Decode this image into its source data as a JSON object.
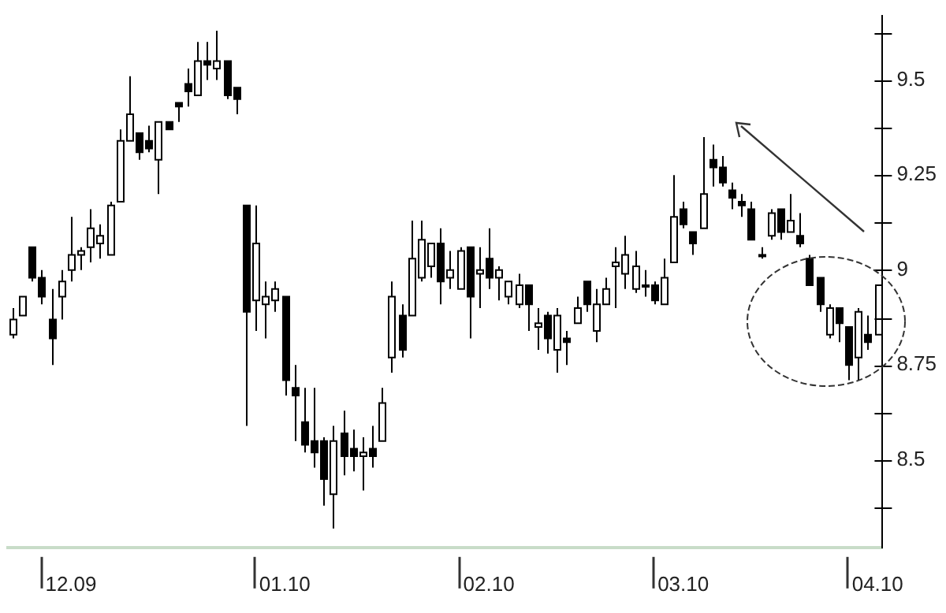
{
  "chart_data": {
    "type": "candlestick",
    "categories": [
      null,
      null,
      null,
      null,
      null,
      null,
      "12.09",
      null,
      null,
      null,
      null,
      null,
      null,
      null,
      null,
      null,
      null,
      null,
      null,
      null,
      null,
      null,
      null,
      null,
      null,
      null,
      null,
      null,
      "01.10",
      null,
      null,
      null,
      null,
      null,
      null,
      null,
      null,
      null,
      null,
      null,
      null,
      null,
      null,
      null,
      null,
      null,
      null,
      null,
      null,
      "02.10",
      null,
      null,
      null,
      null,
      null,
      null,
      null,
      null,
      null,
      null,
      null,
      null,
      null,
      null,
      null,
      null,
      null,
      null,
      null,
      "03.10",
      null,
      null,
      null,
      null,
      null,
      null,
      null,
      null,
      null,
      null,
      null,
      null,
      null,
      null,
      null,
      null,
      null,
      null,
      null,
      "04.10"
    ],
    "ohlc": [
      [
        8.83,
        8.9,
        8.82,
        8.87
      ],
      [
        8.88,
        8.93,
        8.88,
        8.93
      ],
      [
        9.06,
        9.06,
        8.97,
        8.98
      ],
      [
        8.98,
        9.0,
        8.91,
        8.93
      ],
      [
        8.87,
        8.95,
        8.75,
        8.82
      ],
      [
        8.93,
        9.0,
        8.87,
        8.97
      ],
      [
        9.0,
        9.14,
        8.97,
        9.04
      ],
      [
        9.04,
        9.06,
        9.0,
        9.05
      ],
      [
        9.06,
        9.16,
        9.02,
        9.11
      ],
      [
        9.07,
        9.12,
        9.03,
        9.09
      ],
      [
        9.04,
        9.18,
        9.04,
        9.17
      ],
      [
        9.18,
        9.37,
        9.18,
        9.34
      ],
      [
        9.34,
        9.51,
        9.34,
        9.41
      ],
      [
        9.36,
        9.36,
        9.29,
        9.31
      ],
      [
        9.34,
        9.38,
        9.31,
        9.32
      ],
      [
        9.29,
        9.39,
        9.2,
        9.39
      ],
      [
        9.39,
        9.39,
        9.37,
        9.37
      ],
      [
        9.44,
        9.44,
        9.39,
        9.43
      ],
      [
        9.49,
        9.53,
        9.43,
        9.47
      ],
      [
        9.46,
        9.6,
        9.46,
        9.55
      ],
      [
        9.55,
        9.6,
        9.5,
        9.54
      ],
      [
        9.53,
        9.63,
        9.5,
        9.55
      ],
      [
        9.55,
        9.55,
        9.45,
        9.46
      ],
      [
        9.48,
        9.48,
        9.41,
        9.45
      ],
      [
        9.17,
        9.17,
        8.59,
        8.89
      ],
      [
        8.92,
        9.17,
        8.84,
        9.07
      ],
      [
        8.91,
        8.97,
        8.82,
        8.93
      ],
      [
        8.92,
        8.97,
        8.89,
        8.95
      ],
      [
        8.93,
        8.93,
        8.67,
        8.71
      ],
      [
        8.69,
        8.75,
        8.55,
        8.67
      ],
      [
        8.6,
        8.69,
        8.52,
        8.54
      ],
      [
        8.55,
        8.69,
        8.48,
        8.52
      ],
      [
        8.55,
        8.56,
        8.38,
        8.45
      ],
      [
        8.41,
        8.59,
        8.32,
        8.55
      ],
      [
        8.57,
        8.63,
        8.46,
        8.51
      ],
      [
        8.53,
        8.58,
        8.47,
        8.51
      ],
      [
        8.51,
        8.56,
        8.42,
        8.52
      ],
      [
        8.53,
        8.59,
        8.48,
        8.51
      ],
      [
        8.55,
        8.69,
        8.55,
        8.65
      ],
      [
        8.77,
        8.97,
        8.73,
        8.93
      ],
      [
        8.88,
        8.91,
        8.77,
        8.79
      ],
      [
        8.88,
        9.13,
        8.88,
        9.03
      ],
      [
        8.98,
        9.13,
        8.97,
        9.08
      ],
      [
        9.01,
        9.07,
        8.98,
        9.07
      ],
      [
        9.07,
        9.11,
        8.91,
        8.97
      ],
      [
        8.98,
        9.05,
        8.95,
        9.0
      ],
      [
        8.95,
        9.06,
        8.95,
        9.05
      ],
      [
        9.06,
        9.06,
        8.82,
        8.93
      ],
      [
        8.99,
        9.06,
        8.9,
        9.0
      ],
      [
        9.03,
        9.11,
        8.95,
        8.98
      ],
      [
        8.98,
        9.01,
        8.92,
        9.0
      ],
      [
        8.93,
        8.97,
        8.91,
        8.97
      ],
      [
        8.91,
        8.99,
        8.9,
        8.96
      ],
      [
        8.96,
        8.96,
        8.84,
        8.91
      ],
      [
        8.85,
        8.9,
        8.79,
        8.86
      ],
      [
        8.88,
        8.89,
        8.78,
        8.82
      ],
      [
        8.79,
        8.9,
        8.73,
        8.88
      ],
      [
        8.82,
        8.84,
        8.75,
        8.81
      ],
      [
        8.86,
        8.93,
        8.86,
        8.9
      ],
      [
        8.97,
        8.97,
        8.89,
        8.91
      ],
      [
        8.84,
        8.95,
        8.81,
        8.91
      ],
      [
        8.91,
        8.98,
        8.91,
        8.95
      ],
      [
        9.01,
        9.06,
        8.9,
        9.02
      ],
      [
        8.99,
        9.09,
        8.95,
        9.04
      ],
      [
        8.95,
        9.05,
        8.94,
        9.01
      ],
      [
        8.96,
        9.0,
        8.93,
        8.96
      ],
      [
        8.96,
        8.97,
        8.91,
        8.92
      ],
      [
        8.91,
        9.03,
        8.91,
        8.98
      ],
      [
        9.02,
        9.25,
        9.02,
        9.14
      ],
      [
        9.16,
        9.18,
        9.11,
        9.12
      ],
      [
        9.1,
        9.1,
        9.04,
        9.07
      ],
      [
        9.11,
        9.35,
        9.11,
        9.2
      ],
      [
        9.29,
        9.33,
        9.22,
        9.27
      ],
      [
        9.27,
        9.3,
        9.22,
        9.23
      ],
      [
        9.21,
        9.23,
        9.16,
        9.19
      ],
      [
        9.18,
        9.2,
        9.14,
        9.17
      ],
      [
        9.16,
        9.18,
        9.08,
        9.08
      ],
      [
        9.04,
        9.06,
        9.03,
        9.04
      ],
      [
        9.09,
        9.16,
        9.08,
        9.15
      ],
      [
        9.16,
        9.16,
        9.08,
        9.1
      ],
      [
        9.1,
        9.2,
        9.1,
        9.13
      ],
      [
        9.09,
        9.15,
        9.06,
        9.07
      ],
      [
        9.03,
        9.04,
        8.96,
        8.96
      ],
      [
        8.98,
        8.98,
        8.89,
        8.91
      ],
      [
        8.83,
        8.91,
        8.82,
        8.9
      ],
      [
        8.9,
        8.9,
        8.81,
        8.86
      ],
      [
        8.85,
        8.85,
        8.71,
        8.75
      ],
      [
        8.77,
        8.9,
        8.71,
        8.89
      ],
      [
        8.83,
        8.88,
        8.79,
        8.81
      ],
      [
        8.83,
        8.96,
        8.83,
        8.96
      ]
    ],
    "ylim": [
      8.27,
      9.67
    ],
    "yticks": [
      {
        "value": 8.375,
        "label": null
      },
      8.5,
      {
        "value": 8.625,
        "label": null
      },
      8.75,
      {
        "value": 8.875,
        "label": null
      },
      9,
      {
        "value": 9.125,
        "label": null
      },
      9.25,
      {
        "value": 9.375,
        "label": null
      },
      9.5,
      {
        "value": 9.625,
        "label": null
      }
    ]
  }
}
